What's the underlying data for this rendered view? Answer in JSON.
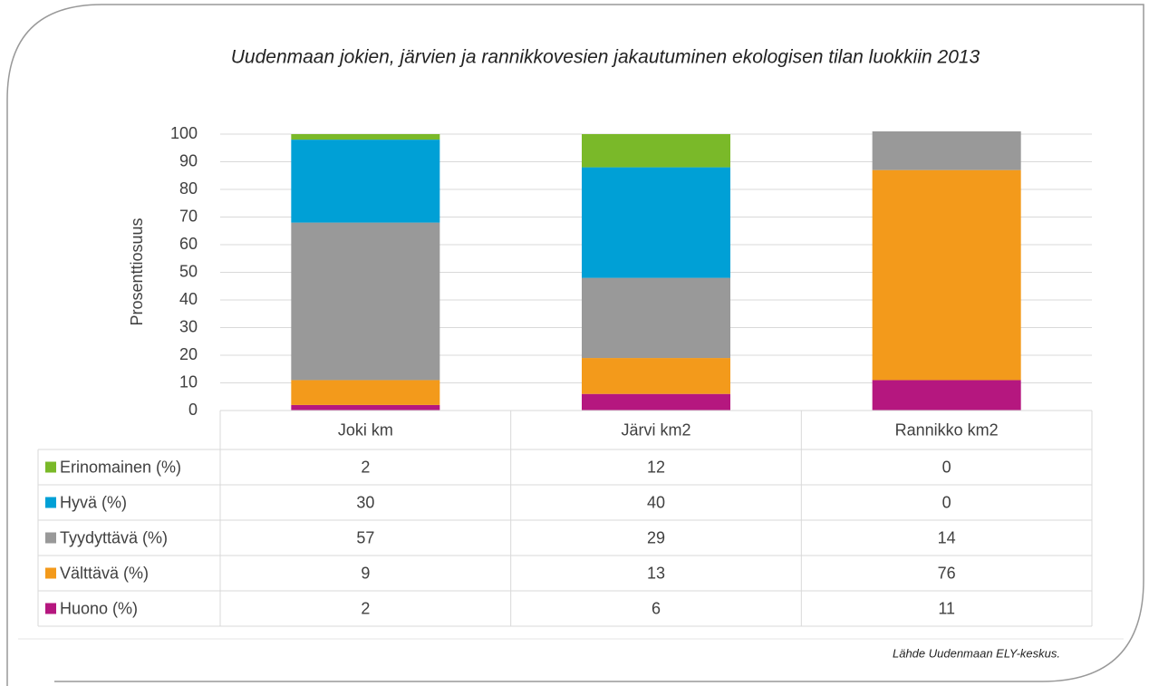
{
  "chart_data": {
    "type": "stacked_bar",
    "title": "Uudenmaan jokien, järvien ja rannikkovesien jakautuminen ekologisen tilan luokkiin 2013",
    "ylabel": "Prosenttiosuus",
    "categories": [
      "Joki km",
      "Järvi km2",
      "Rannikko km2"
    ],
    "series": [
      {
        "name": "Erinomainen (%)",
        "color": "#7ab929",
        "values": [
          2,
          12,
          0
        ]
      },
      {
        "name": "Hyvä (%)",
        "color": "#00a0d6",
        "values": [
          30,
          40,
          0
        ]
      },
      {
        "name": "Tyydyttävä (%)",
        "color": "#999999",
        "values": [
          57,
          29,
          14
        ]
      },
      {
        "name": "Välttävä (%)",
        "color": "#f39a1b",
        "values": [
          9,
          13,
          76
        ]
      },
      {
        "name": "Huono (%)",
        "color": "#b5177f",
        "values": [
          2,
          6,
          11
        ]
      }
    ],
    "ylim": [
      0,
      100
    ],
    "yticks": [
      0,
      10,
      20,
      30,
      40,
      50,
      60,
      70,
      80,
      90,
      100
    ],
    "grid": true,
    "source": "Lähde Uudenmaan ELY-keskus."
  }
}
